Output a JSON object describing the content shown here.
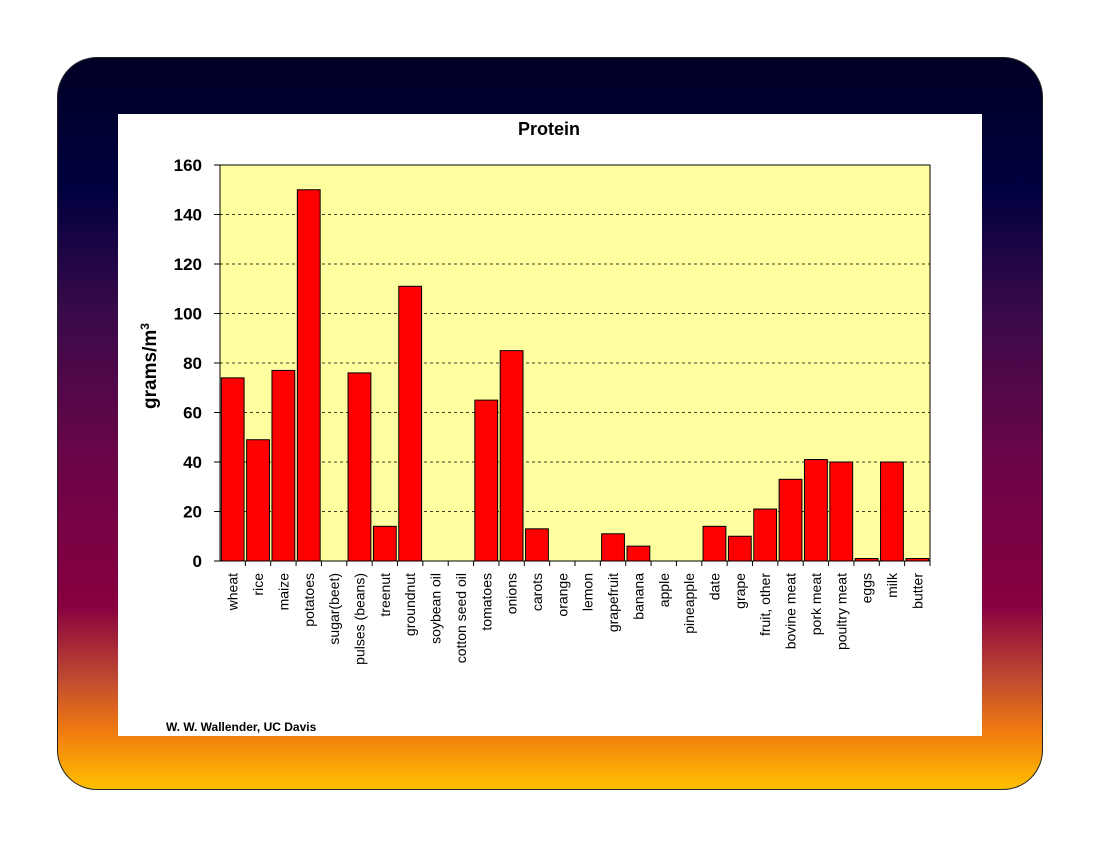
{
  "credit": "W. W. Wallender, UC Davis",
  "chart_data": {
    "type": "bar",
    "title": "Protein",
    "ylabel": "grams/m",
    "ylabel_superscript": "3",
    "xlabel": "",
    "ylim": [
      0,
      160
    ],
    "yticks": [
      0,
      20,
      40,
      60,
      80,
      100,
      120,
      140,
      160
    ],
    "grid": true,
    "plot_background": "#ffffa0",
    "bar_color": "#ff0000",
    "categories": [
      "wheat",
      "rice",
      "maize",
      "potatoes",
      "sugar(beet)",
      "pulses (beans)",
      "treenut",
      "groundnut",
      "soybean oil",
      "cotton seed oil",
      "tomatoes",
      "onions",
      "carots",
      "orange",
      "lemon",
      "grapefruit",
      "banana",
      "apple",
      "pineapple",
      "date",
      "grape",
      "fruit, other",
      "bovine meat",
      "pork meat",
      "poultry meat",
      "eggs",
      "milk",
      "butter"
    ],
    "values": [
      74,
      49,
      77,
      150,
      0,
      76,
      14,
      111,
      0,
      0,
      65,
      85,
      13,
      0,
      0,
      11,
      6,
      0,
      0,
      14,
      10,
      21,
      33,
      41,
      40,
      1,
      40,
      1
    ]
  }
}
